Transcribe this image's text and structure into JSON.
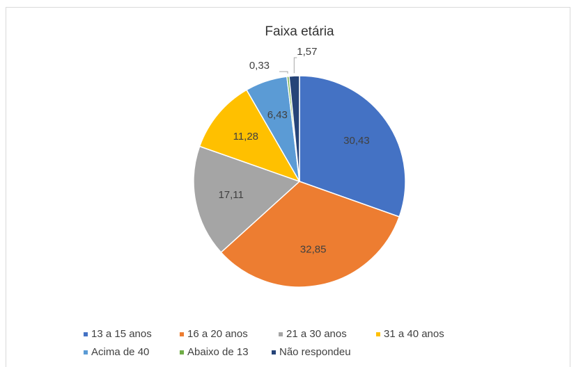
{
  "chart_data": {
    "type": "pie",
    "title": "Faixa etária",
    "categories": [
      "13 a 15 anos",
      "16 a 20 anos",
      "21 a 30 anos",
      "31 a 40 anos",
      "Acima de 40",
      "Abaixo de 13",
      "Não respondeu"
    ],
    "values": [
      30.43,
      32.85,
      17.11,
      11.28,
      6.43,
      0.33,
      1.57
    ],
    "value_labels": [
      "30,43",
      "32,85",
      "17,11",
      "11,28",
      "6,43",
      "0,33",
      "1,57"
    ],
    "colors": [
      "#4472c4",
      "#ed7d31",
      "#a5a5a5",
      "#ffc000",
      "#5b9bd5",
      "#70ad47",
      "#264478"
    ],
    "legend": "bottom"
  }
}
